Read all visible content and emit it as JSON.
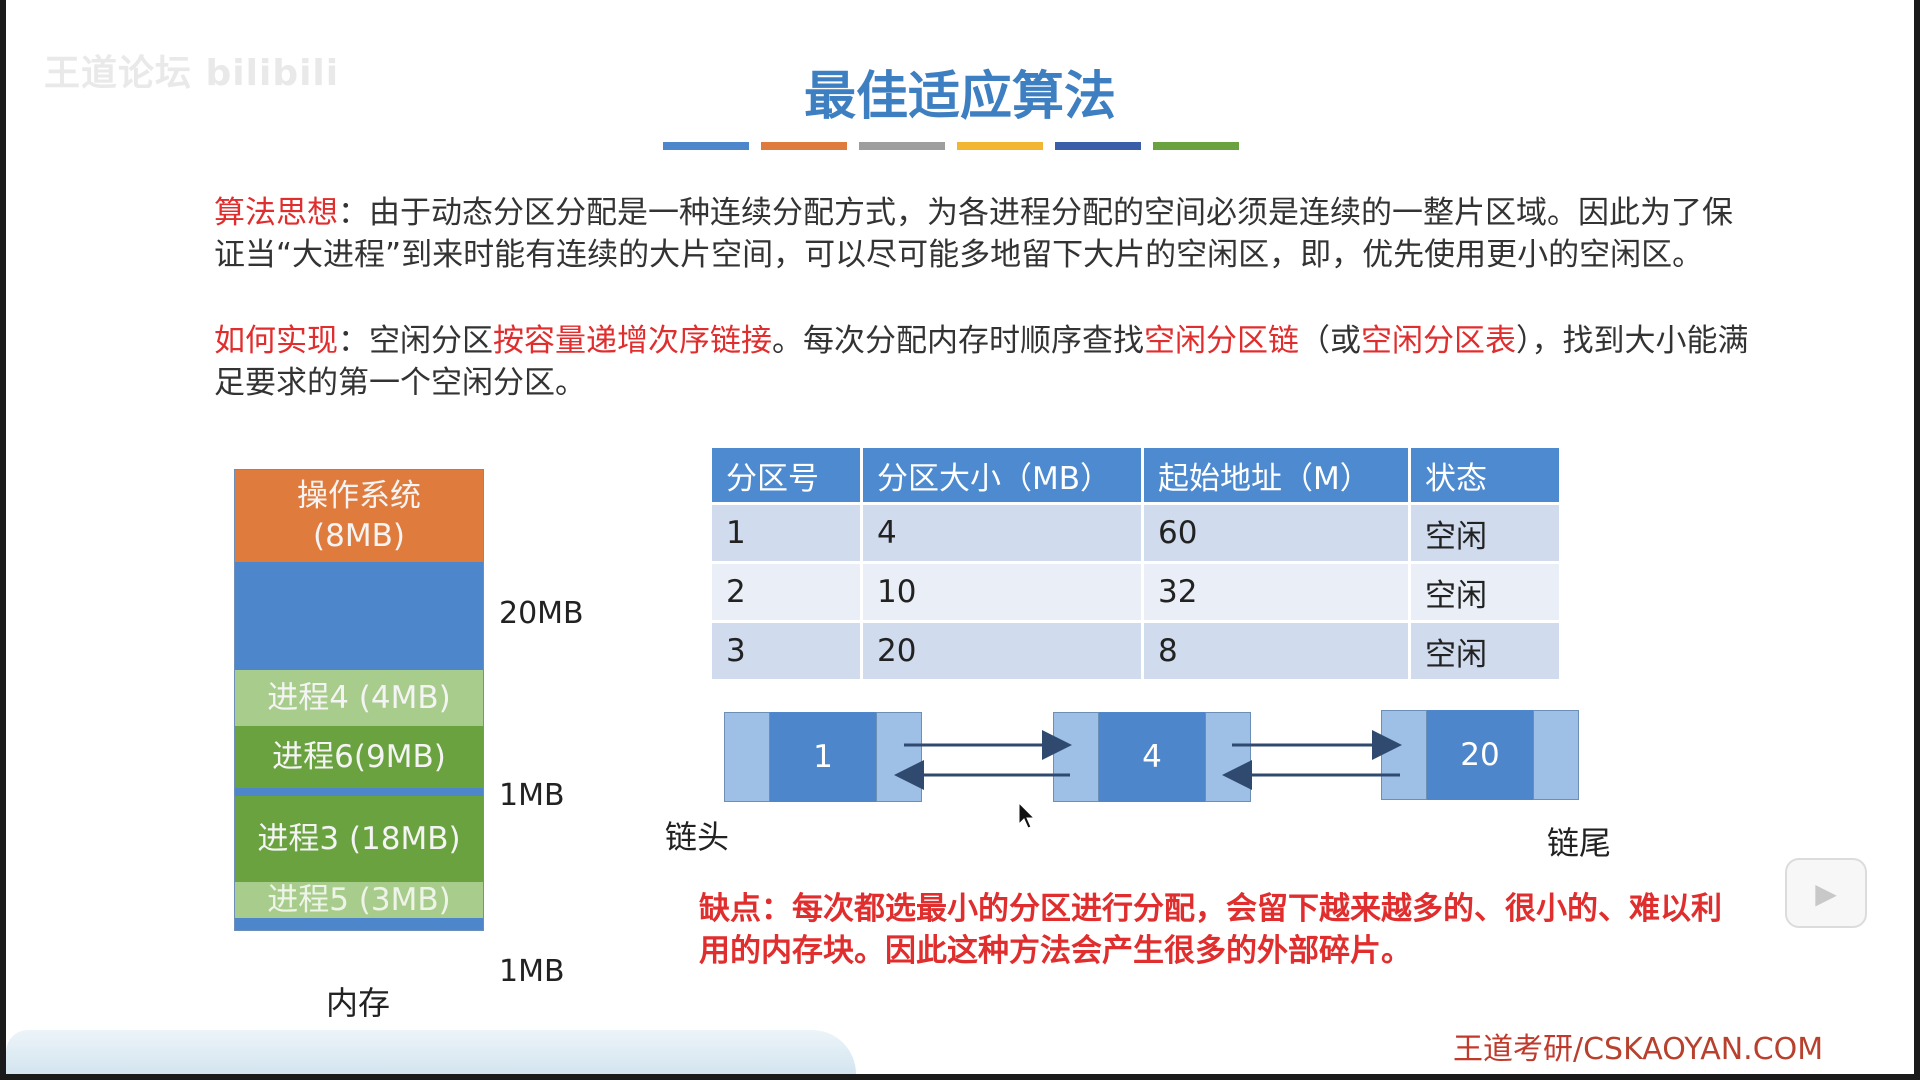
{
  "watermark": "王道论坛 bilibili",
  "title": "最佳适应算法",
  "colors": {
    "title": "#3d7fc1",
    "accent_red": "#e02d2d",
    "table_header": "#4d8ad0",
    "node_blue": "#4d86cb"
  },
  "colorbar": [
    "#4d86cb",
    "#e07b3e",
    "#9e9e9e",
    "#f2b632",
    "#3a5fa8",
    "#6aa240"
  ],
  "para1": {
    "label": "算法思想",
    "text": "：由于动态分区分配是一种连续分配方式，为各进程分配的空间必须是连续的一整片区域。因此为了保证当“大进程”到来时能有连续的大片空间，可以尽可能多地留下大片的空闲区，即，优先使用更小的空闲区。"
  },
  "para2": {
    "label": "如何实现",
    "t1": "：空闲分区",
    "h1": "按容量递增次序链接",
    "t2": "。每次分配内存时顺序查找",
    "h2": "空闲分区链",
    "t3": "（或",
    "h3": "空闲分区表",
    "t4": "），找到大小能满足要求的第一个空闲分区。"
  },
  "memory": {
    "segments": [
      {
        "label": "操作系统\n(8MB)",
        "color": "#e07b3e"
      },
      {
        "label": "",
        "color": "#4d86cb"
      },
      {
        "label": "进程4 (4MB)",
        "color": "#a8cc8c"
      },
      {
        "label": "进程6(9MB)",
        "color": "#6aa240"
      },
      {
        "label": "",
        "color": "#4d86cb"
      },
      {
        "label": "进程3 (18MB)",
        "color": "#6aa240"
      },
      {
        "label": "进程5 (3MB)",
        "color": "#a8cc8c"
      },
      {
        "label": "",
        "color": "#4d86cb"
      }
    ],
    "side_labels": [
      "20MB",
      "1MB",
      "1MB"
    ],
    "caption": "内存"
  },
  "table": {
    "headers": [
      "分区号",
      "分区大小（MB）",
      "起始地址（M）",
      "状态"
    ],
    "rows": [
      [
        "1",
        "4",
        "60",
        "空闲"
      ],
      [
        "2",
        "10",
        "32",
        "空闲"
      ],
      [
        "3",
        "20",
        "8",
        "空闲"
      ]
    ]
  },
  "list": {
    "nodes": [
      "1",
      "4",
      "20"
    ],
    "head_label": "链头",
    "tail_label": "链尾"
  },
  "drawback": "缺点：每次都选最小的分区进行分配，会留下越来越多的、很小的、难以利用的内存块。因此这种方法会产生很多的外部碎片。",
  "footer": {
    "brand": "王道考研",
    "site": "/CSKAOYAN.COM"
  },
  "play_icon": "play-icon"
}
